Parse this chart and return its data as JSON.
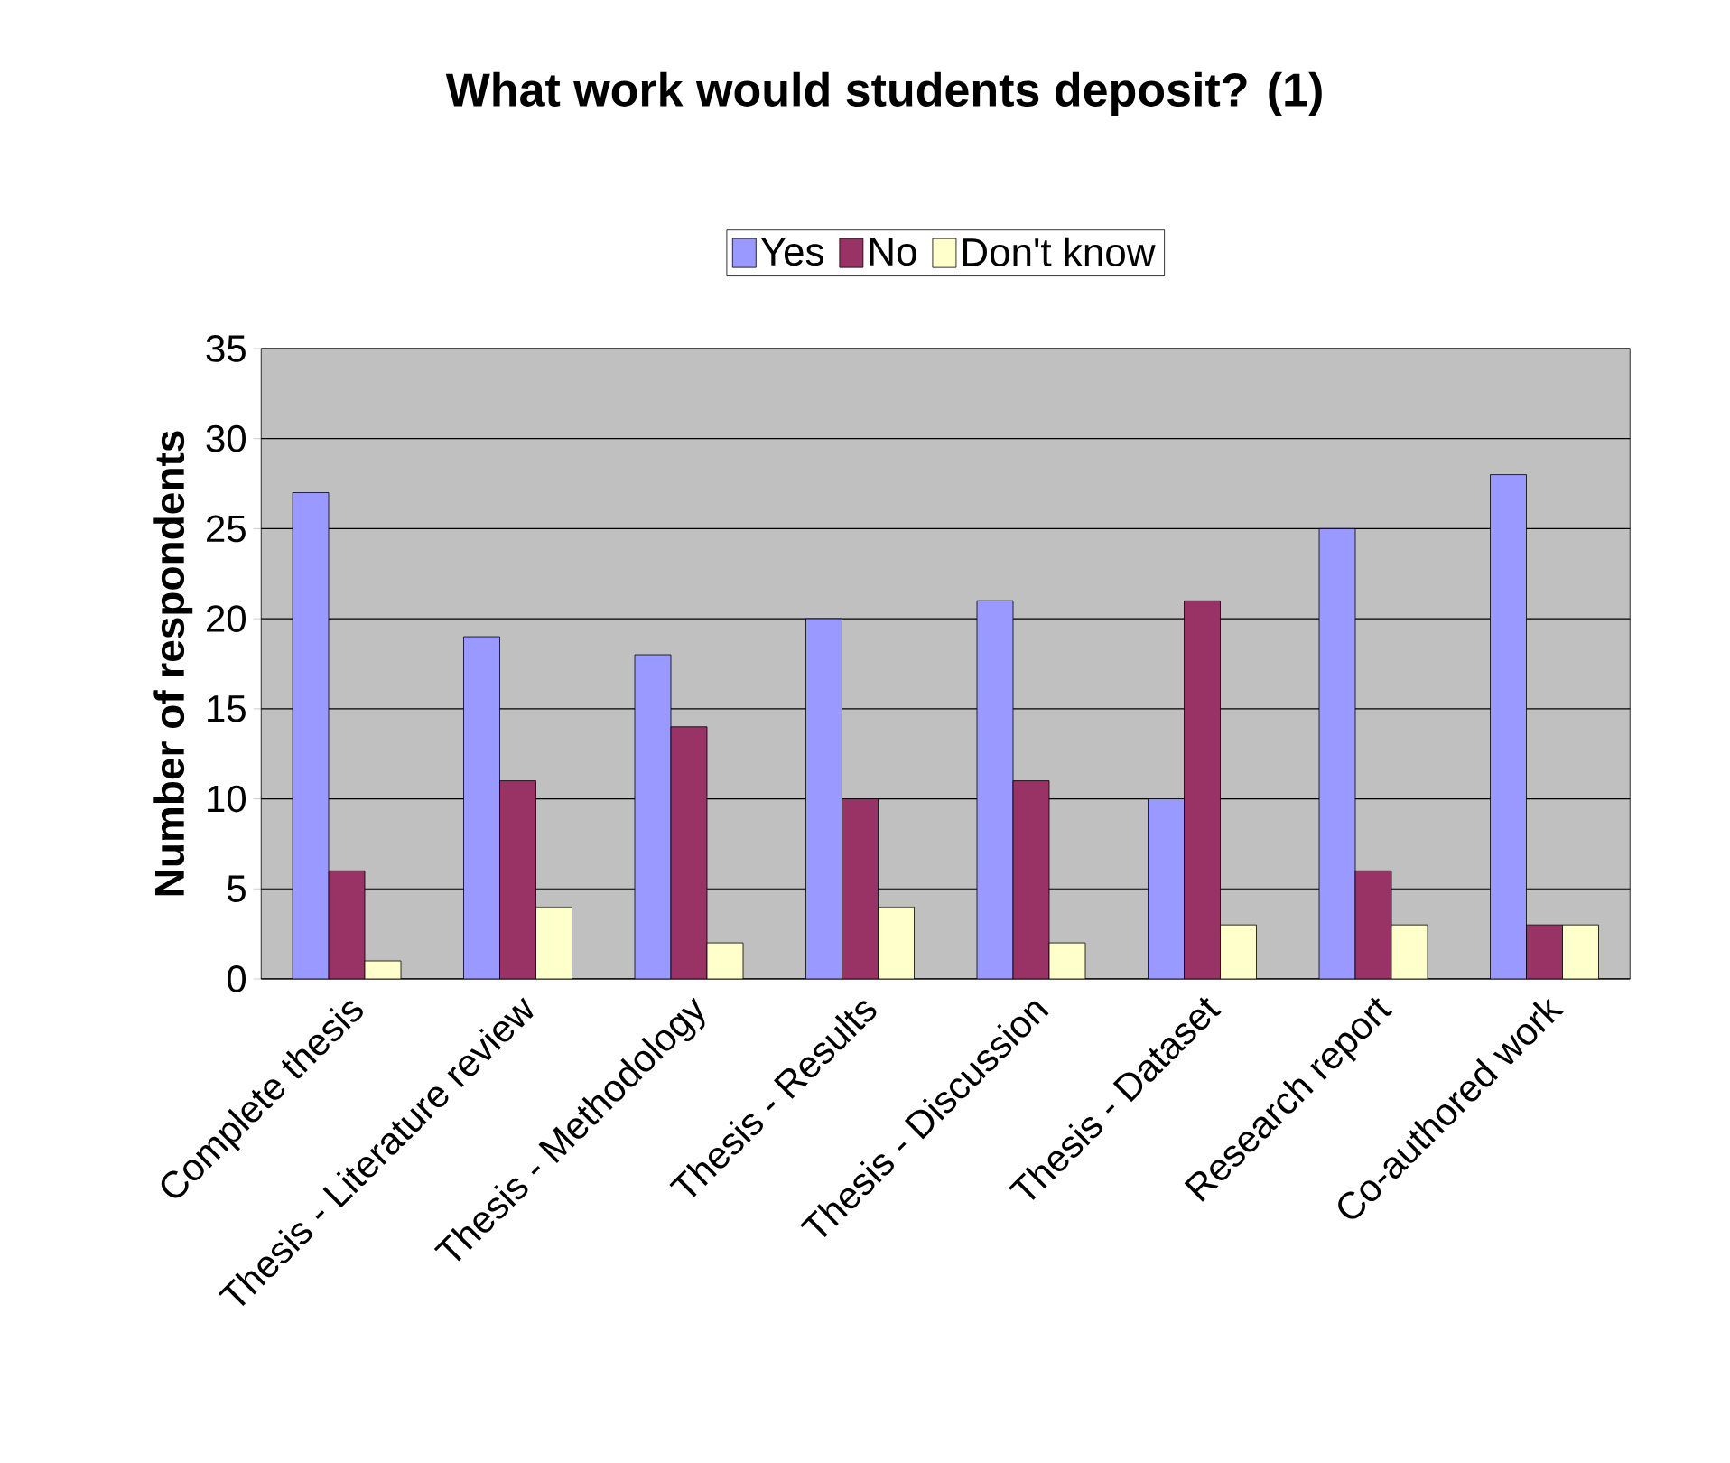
{
  "chart_data": {
    "type": "bar",
    "title": "What work would students deposit? (1)",
    "ylabel": "Number of respondents",
    "categories": [
      "Complete thesis",
      "Thesis - Literature review",
      "Thesis - Methodology",
      "Thesis - Results",
      "Thesis - Discussion",
      "Thesis - Dataset",
      "Research report",
      "Co-authored work"
    ],
    "series": [
      {
        "name": "Yes",
        "color": "#9999ff",
        "values": [
          27,
          19,
          18,
          20,
          21,
          10,
          25,
          28
        ]
      },
      {
        "name": "No",
        "color": "#993366",
        "values": [
          6,
          11,
          14,
          10,
          11,
          21,
          6,
          3
        ]
      },
      {
        "name": "Don't know",
        "color": "#ffffcc",
        "values": [
          1,
          4,
          2,
          4,
          2,
          3,
          3,
          3
        ]
      }
    ],
    "ylim": [
      0,
      35
    ],
    "yticks": [
      0,
      5,
      10,
      15,
      20,
      25,
      30,
      35
    ],
    "grid": "y",
    "legend": "top"
  }
}
